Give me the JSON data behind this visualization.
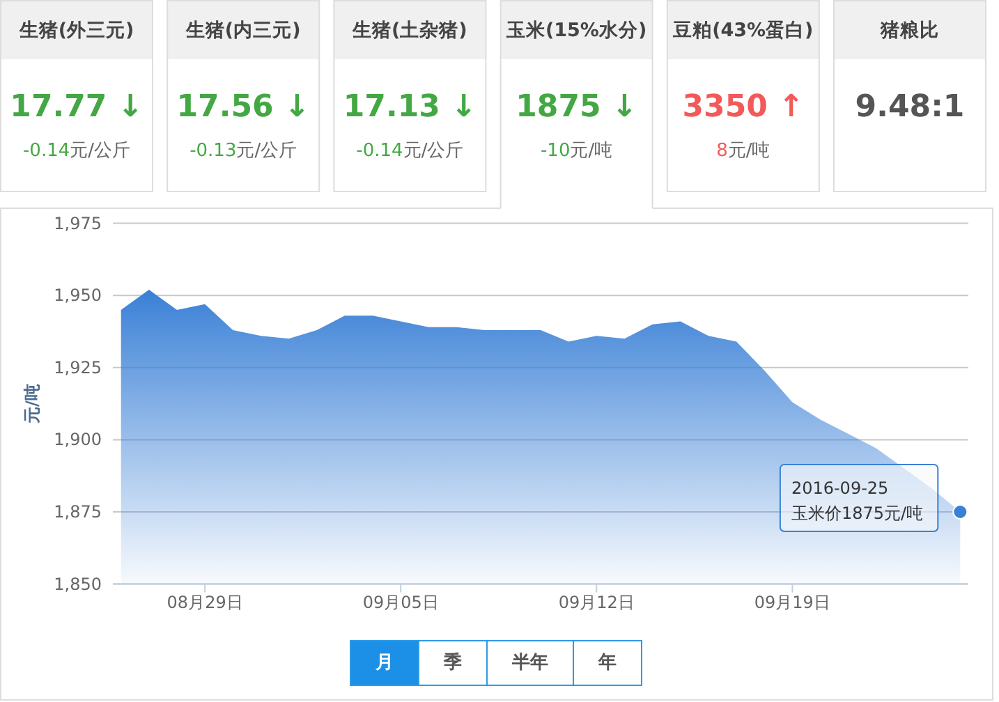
{
  "chart_data": [
    {
      "type": "other",
      "title": "生猪(外三元)",
      "annotations": [
        "17.77 ↓",
        "-0.14元/公斤"
      ],
      "color": "#43a843"
    },
    {
      "type": "other",
      "title": "生猪(内三元)",
      "annotations": [
        "17.56 ↓",
        "-0.13元/公斤"
      ],
      "color": "#43a843"
    },
    {
      "type": "other",
      "title": "生猪(土杂猪)",
      "annotations": [
        "17.13 ↓",
        "-0.14元/公斤"
      ],
      "color": "#43a843"
    },
    {
      "type": "other",
      "title": "玉米(15%水分)",
      "annotations": [
        "1875 ↓",
        "-10元/吨"
      ],
      "color": "#43a843"
    },
    {
      "type": "other",
      "title": "豆粕(43%蛋白)",
      "annotations": [
        "3350 ↑",
        "8元/吨"
      ],
      "color": "#f25a5a"
    },
    {
      "type": "other",
      "title": "猪粮比",
      "annotations": [
        "9.48:1"
      ],
      "color": "#555555"
    },
    {
      "type": "area",
      "ylabel": "元/吨",
      "x": [
        "2016-08-26",
        "2016-08-27",
        "2016-08-28",
        "2016-08-29",
        "2016-08-30",
        "2016-08-31",
        "2016-09-01",
        "2016-09-02",
        "2016-09-03",
        "2016-09-04",
        "2016-09-05",
        "2016-09-06",
        "2016-09-07",
        "2016-09-08",
        "2016-09-09",
        "2016-09-10",
        "2016-09-11",
        "2016-09-12",
        "2016-09-13",
        "2016-09-14",
        "2016-09-15",
        "2016-09-16",
        "2016-09-17",
        "2016-09-18",
        "2016-09-19",
        "2016-09-20",
        "2016-09-21",
        "2016-09-22",
        "2016-09-23",
        "2016-09-24",
        "2016-09-25"
      ],
      "values": [
        1945,
        1952,
        1945,
        1947,
        1938,
        1936,
        1935,
        1938,
        1943,
        1943,
        1941,
        1939,
        1939,
        1938,
        1938,
        1938,
        1934,
        1936,
        1935,
        1940,
        1941,
        1936,
        1934,
        1924,
        1913,
        1907,
        1902,
        1897,
        1890,
        1883,
        1875
      ],
      "color": "#3a80d6",
      "xlim": [
        "2016-08-25T17:00",
        "2016-09-25T07:00"
      ],
      "xticks": [
        {
          "value": "2016-08-29",
          "label": "08月29日"
        },
        {
          "value": "2016-09-05",
          "label": "09月05日"
        },
        {
          "value": "2016-09-12",
          "label": "09月12日"
        },
        {
          "value": "2016-09-19",
          "label": "09月19日"
        }
      ],
      "ylim": [
        1850,
        1975
      ],
      "yticks": [
        {
          "value": 1850,
          "label": "1,850"
        },
        {
          "value": 1875,
          "label": "1,875"
        },
        {
          "value": 1900,
          "label": "1,900"
        },
        {
          "value": 1925,
          "label": "1,925"
        },
        {
          "value": 1950,
          "label": "1,950"
        },
        {
          "value": 1975,
          "label": "1,975"
        }
      ],
      "grid": "y",
      "annotations": [
        {
          "text": "2016-09-25\n玉米价1875元/吨",
          "x": "2016-09-25",
          "y": 1875
        }
      ]
    },
    {
      "type": "other",
      "annotations": [
        "月",
        "季",
        "半年",
        "年"
      ]
    }
  ]
}
